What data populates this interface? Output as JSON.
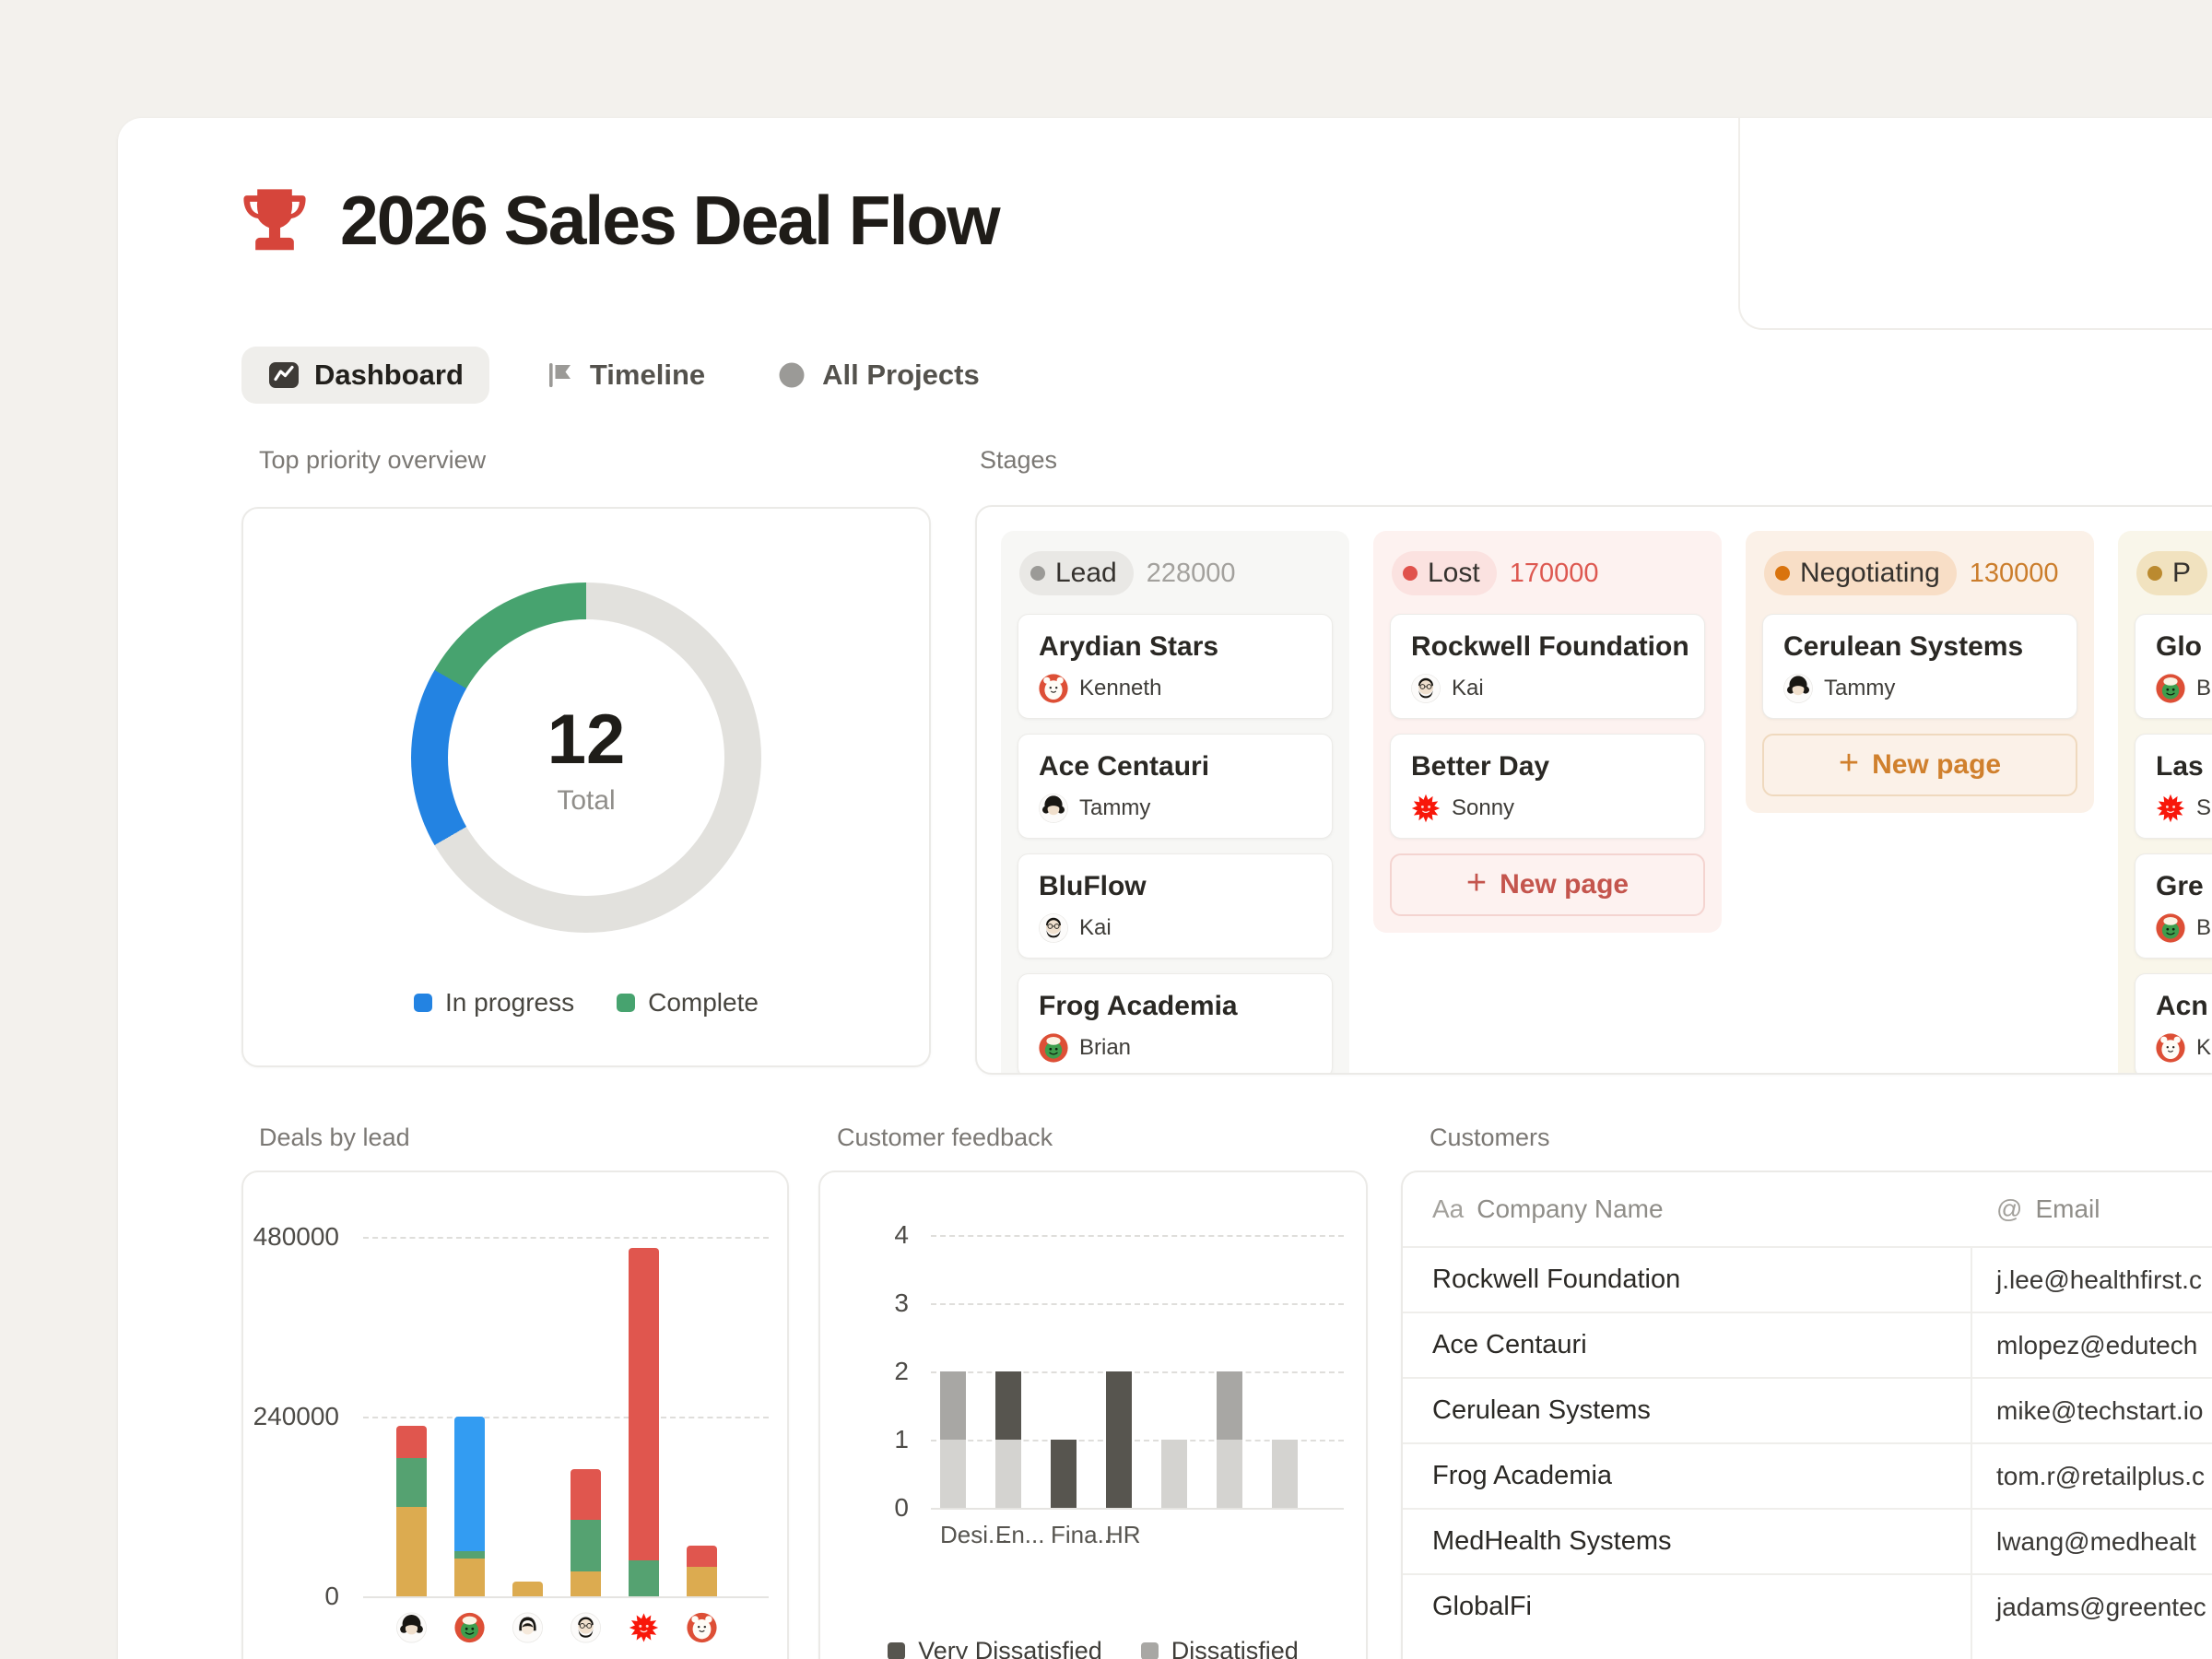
{
  "page": {
    "title": "2026 Sales Deal Flow",
    "icon": "trophy-icon",
    "accent_color": "#D6453B"
  },
  "tabs": [
    {
      "label": "Dashboard",
      "icon": "chart-icon",
      "active": true
    },
    {
      "label": "Timeline",
      "icon": "flag-icon",
      "active": false
    },
    {
      "label": "All Projects",
      "icon": "circle-icon",
      "active": false
    }
  ],
  "section_labels": {
    "priority": "Top priority overview",
    "stages": "Stages",
    "deals": "Deals by lead",
    "feedback": "Customer feedback",
    "customers": "Customers"
  },
  "chart_data": [
    {
      "id": "priority_donut",
      "type": "pie",
      "title": "Top priority overview",
      "center_value": "12",
      "center_label": "Total",
      "slices": [
        {
          "label": "",
          "value": 8,
          "color": "#E2E1DD"
        },
        {
          "label": "In progress",
          "value": 2,
          "color": "#2383E2"
        },
        {
          "label": "Complete",
          "value": 2,
          "color": "#47A36F"
        }
      ],
      "legend": [
        {
          "label": "In progress",
          "color": "#2383E2"
        },
        {
          "label": "Complete",
          "color": "#47A36F"
        }
      ]
    },
    {
      "id": "deals_by_lead",
      "type": "bar",
      "title": "Deals by lead",
      "stacked": true,
      "ylim": [
        0,
        480000
      ],
      "yticks": [
        480000,
        240000,
        0
      ],
      "categories": [
        "tammy",
        "brian",
        "woman",
        "kai",
        "sonny",
        "kenneth"
      ],
      "series": [
        {
          "name": "",
          "color": "#DCAB50",
          "values": [
            120000,
            50000,
            20000,
            33000,
            0,
            40000
          ]
        },
        {
          "name": "",
          "color": "#55A271",
          "values": [
            65000,
            10000,
            0,
            69000,
            48000,
            0
          ]
        },
        {
          "name": "",
          "color": "#339CF2",
          "values": [
            0,
            180000,
            0,
            0,
            0,
            0
          ]
        },
        {
          "name": "",
          "color": "#E0564E",
          "values": [
            43000,
            0,
            0,
            68000,
            417000,
            28000
          ]
        }
      ]
    },
    {
      "id": "customer_feedback",
      "type": "bar",
      "title": "Customer feedback",
      "stacked": true,
      "ylim": [
        0,
        4
      ],
      "yticks": [
        4,
        3,
        2,
        1,
        0
      ],
      "categories": [
        "Desi...",
        "En...",
        "Fina...",
        "HR",
        "",
        "",
        ""
      ],
      "series": [
        {
          "name": "",
          "color": "#D4D3D0",
          "values": [
            1,
            1,
            0,
            0,
            1,
            1,
            1
          ]
        },
        {
          "name": "Dissatisfied",
          "color": "#A8A7A4",
          "values": [
            1,
            0,
            0,
            0,
            0,
            1,
            0
          ]
        },
        {
          "name": "Very Dissatisfied",
          "color": "#57554F",
          "values": [
            0,
            1,
            1,
            2,
            0,
            0,
            0
          ]
        }
      ],
      "legend": [
        {
          "label": "Very Dissatisfied",
          "color": "#57554F"
        },
        {
          "label": "Dissatisfied",
          "color": "#A8A7A4"
        }
      ]
    }
  ],
  "stages": {
    "columns": [
      {
        "key": "lead",
        "label": "Lead",
        "count": "228000",
        "dot_color": "#9B9A97",
        "pill_bg": "#E9E8E5",
        "count_color": "#A3A19D",
        "bg": "#F7F7F5",
        "cards": [
          {
            "title": "Arydian Stars",
            "person": "Kenneth",
            "avatar": "kenneth"
          },
          {
            "title": "Ace Centauri",
            "person": "Tammy",
            "avatar": "tammy"
          },
          {
            "title": "BluFlow",
            "person": "Kai",
            "avatar": "kai"
          },
          {
            "title": "Frog Academia",
            "person": "Brian",
            "avatar": "brian"
          }
        ],
        "new_page": null
      },
      {
        "key": "lost",
        "label": "Lost",
        "count": "170000",
        "dot_color": "#E0524C",
        "pill_bg": "#FBE2E0",
        "count_color": "#DD5850",
        "bg": "#FDF2F0",
        "cards": [
          {
            "title": "Rockwell Foundation",
            "person": "Kai",
            "avatar": "kai"
          },
          {
            "title": "Better Day",
            "person": "Sonny",
            "avatar": "sonny"
          }
        ],
        "new_page": {
          "label": "New page",
          "color": "#C4554D",
          "border": "#F4D4D0"
        }
      },
      {
        "key": "negotiating",
        "label": "Negotiating",
        "count": "130000",
        "dot_color": "#D9730D",
        "pill_bg": "#F8DEC6",
        "count_color": "#CB7D2B",
        "bg": "#FBF1E8",
        "cards": [
          {
            "title": "Cerulean Systems",
            "person": "Tammy",
            "avatar": "tammy"
          }
        ],
        "new_page": {
          "label": "New page",
          "color": "#D0802D",
          "border": "#EFD9BE"
        }
      },
      {
        "key": "proposal",
        "label": "P",
        "count": "",
        "dot_color": "#BB8A2F",
        "pill_bg": "#F1E2BF",
        "count_color": "#BB8A2F",
        "bg": "#F9F6EA",
        "cards": [
          {
            "title": "Glo",
            "person": "B",
            "avatar": "brian"
          },
          {
            "title": "Las",
            "person": "S",
            "avatar": "sonny"
          },
          {
            "title": "Gre",
            "person": "B",
            "avatar": "brian"
          },
          {
            "title": "Acn",
            "person": "K",
            "avatar": "kenneth"
          }
        ],
        "new_page": null
      }
    ]
  },
  "customers": {
    "columns": [
      {
        "icon": "Aa",
        "label": "Company Name"
      },
      {
        "icon": "@",
        "label": "Email"
      }
    ],
    "rows": [
      {
        "company": "Rockwell Foundation",
        "email": "j.lee@healthfirst.c"
      },
      {
        "company": "Ace Centauri",
        "email": "mlopez@edutech"
      },
      {
        "company": "Cerulean Systems",
        "email": "mike@techstart.io"
      },
      {
        "company": "Frog Academia",
        "email": "tom.r@retailplus.c"
      },
      {
        "company": "MedHealth Systems",
        "email": "lwang@medhealt"
      },
      {
        "company": "GlobalFi",
        "email": "jadams@greentec"
      }
    ]
  }
}
